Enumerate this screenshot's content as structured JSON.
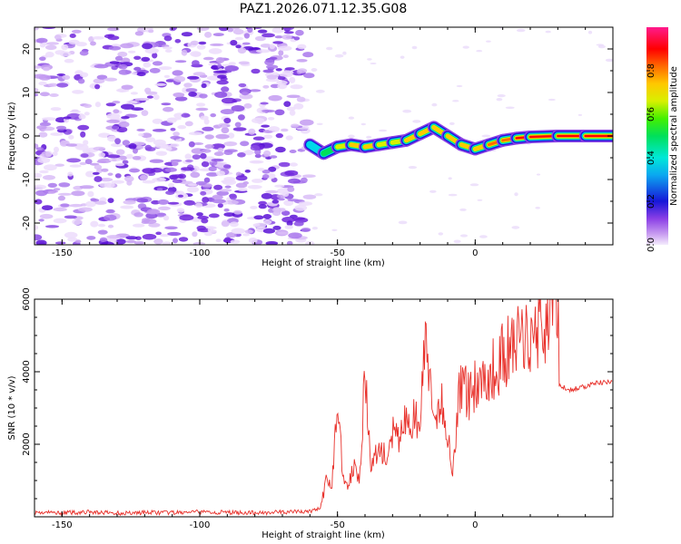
{
  "title": "PAZ1.2026.071.12.35.G08",
  "chart_data": [
    {
      "type": "heatmap",
      "title": "PAZ1.2026.071.12.35.G08",
      "xlabel": "Height of straight line (km)",
      "ylabel": "Frequency (Hz)",
      "xlim": [
        -160,
        50
      ],
      "ylim": [
        -25,
        25
      ],
      "xticks": [
        -150,
        -100,
        -50,
        0
      ],
      "yticks": [
        -20,
        -10,
        0,
        10,
        20
      ],
      "noise_region_x": [
        -160,
        -60
      ],
      "signal_ridge": {
        "x": [
          -60,
          -55,
          -50,
          -45,
          -40,
          -35,
          -30,
          -25,
          -20,
          -15,
          -10,
          -5,
          0,
          5,
          10,
          15,
          20,
          30,
          40,
          50
        ],
        "freq_hz": [
          -2,
          -4,
          -2.5,
          -2,
          -2.5,
          -2,
          -1.5,
          -1,
          0.5,
          2,
          0,
          -2,
          -3,
          -2,
          -1,
          -0.5,
          -0.2,
          0,
          0,
          0
        ],
        "amplitude": [
          0.35,
          0.55,
          0.6,
          0.7,
          0.75,
          0.7,
          0.65,
          0.7,
          0.75,
          0.85,
          0.7,
          0.75,
          0.8,
          0.8,
          0.85,
          0.9,
          0.95,
          1.0,
          1.0,
          1.0
        ]
      },
      "colorbar": {
        "label": "Normalized spectral amplitude",
        "range": [
          0,
          1
        ],
        "ticks": [
          0.0,
          0.2,
          0.4,
          0.6,
          0.8
        ]
      }
    },
    {
      "type": "line",
      "xlabel": "Height of straight line (km)",
      "ylabel": "SNR (10 * v/v)",
      "xlim": [
        -160,
        50
      ],
      "ylim": [
        0,
        6000
      ],
      "xticks": [
        -150,
        -100,
        -50,
        0
      ],
      "yticks": [
        2000,
        4000,
        6000
      ],
      "color": "#e8302a",
      "series": [
        {
          "name": "SNR",
          "x": [
            -160,
            -150,
            -140,
            -130,
            -120,
            -110,
            -100,
            -90,
            -80,
            -70,
            -60,
            -56,
            -54,
            -52,
            -50,
            -48,
            -46,
            -44,
            -42,
            -40,
            -38,
            -36,
            -34,
            -32,
            -30,
            -28,
            -26,
            -24,
            -22,
            -20,
            -18,
            -16,
            -14,
            -12,
            -10,
            -8,
            -6,
            -4,
            -2,
            0,
            5,
            10,
            15,
            20,
            25,
            28,
            30,
            30.5,
            35,
            40,
            45,
            50
          ],
          "y": [
            120,
            110,
            130,
            100,
            120,
            110,
            130,
            120,
            110,
            130,
            150,
            250,
            1000,
            900,
            3200,
            1200,
            800,
            1500,
            1100,
            3900,
            1400,
            1700,
            1900,
            1500,
            2300,
            2100,
            2600,
            2500,
            2800,
            2400,
            5200,
            3100,
            2400,
            3300,
            2200,
            1300,
            3400,
            3600,
            3300,
            3700,
            3900,
            4400,
            4800,
            5000,
            5300,
            5700,
            6000,
            3600,
            3500,
            3600,
            3700,
            3700
          ]
        }
      ]
    }
  ]
}
